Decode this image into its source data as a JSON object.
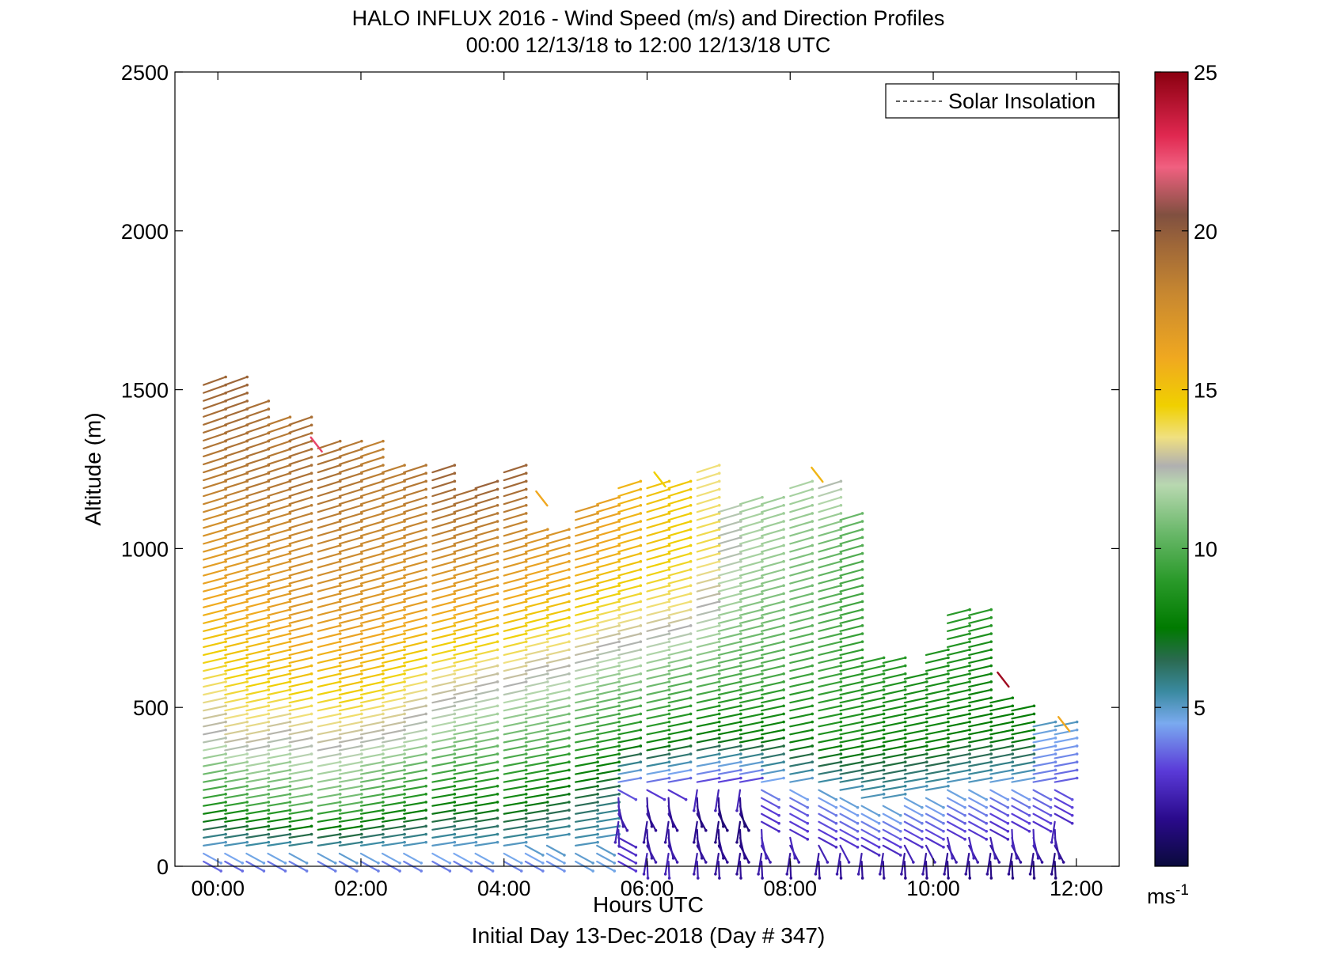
{
  "chart_data": {
    "type": "wind-barb-profile",
    "title": "HALO INFLUX 2016 - Wind Speed (m/s) and Direction Profiles",
    "subtitle": "00:00 12/13/18 to 12:00 12/13/18  UTC",
    "xlabel": "Hours UTC",
    "xlabel2": "Initial Day 13-Dec-2018 (Day # 347)",
    "ylabel": "Altitude (m)",
    "xlim": [
      -0.6,
      12.6
    ],
    "ylim": [
      0,
      2500
    ],
    "x_ticks": [
      0,
      2,
      4,
      6,
      8,
      10,
      12
    ],
    "x_tick_labels": [
      "00:00",
      "02:00",
      "04:00",
      "06:00",
      "08:00",
      "10:00",
      "12:00"
    ],
    "y_ticks": [
      0,
      500,
      1000,
      1500,
      2000,
      2500
    ],
    "y_tick_labels": [
      "0",
      "500",
      "1000",
      "1500",
      "2000",
      "2500"
    ],
    "legend": {
      "label": "Solar Insolation",
      "position": "top-right",
      "style": "dashed"
    },
    "colorbar": {
      "range": [
        0,
        25
      ],
      "ticks": [
        5,
        10,
        15,
        20,
        25
      ],
      "tick_labels": [
        "5",
        "10",
        "15",
        "20",
        "25"
      ],
      "unit": "ms",
      "unit_exp": "-1",
      "stops": [
        {
          "v": 0.0,
          "c": "#0a0a3c"
        },
        {
          "v": 1.5,
          "c": "#2a0a8c"
        },
        {
          "v": 3.0,
          "c": "#5a3ad8"
        },
        {
          "v": 4.5,
          "c": "#7aaaf0"
        },
        {
          "v": 5.5,
          "c": "#3a8aa0"
        },
        {
          "v": 6.5,
          "c": "#2a6a50"
        },
        {
          "v": 7.5,
          "c": "#007a00"
        },
        {
          "v": 9.0,
          "c": "#2a9a2a"
        },
        {
          "v": 10.5,
          "c": "#6ab86a"
        },
        {
          "v": 12.0,
          "c": "#b8d8b0"
        },
        {
          "v": 12.6,
          "c": "#b0b0b0"
        },
        {
          "v": 13.5,
          "c": "#f0e080"
        },
        {
          "v": 14.5,
          "c": "#f0d000"
        },
        {
          "v": 16.0,
          "c": "#f0a820"
        },
        {
          "v": 18.0,
          "c": "#c88830"
        },
        {
          "v": 19.5,
          "c": "#a06838"
        },
        {
          "v": 20.5,
          "c": "#805040"
        },
        {
          "v": 22.0,
          "c": "#f06080"
        },
        {
          "v": 23.0,
          "c": "#e02850"
        },
        {
          "v": 25.0,
          "c": "#8a0010"
        }
      ]
    },
    "profiles": [
      {
        "t": -0.2,
        "top": 1530,
        "spd": [
          3.2,
          9.0,
          12.5,
          14.0,
          15.8,
          17.0,
          18.5,
          19.5
        ]
      },
      {
        "t": 0.1,
        "top": 1520,
        "spd": [
          3.2,
          9.5,
          13.0,
          14.5,
          16.0,
          17.2,
          18.6,
          19.6
        ]
      },
      {
        "t": 0.4,
        "top": 1450,
        "spd": [
          3.3,
          10.0,
          13.0,
          14.8,
          16.0,
          17.5,
          18.8,
          19.2
        ]
      },
      {
        "t": 0.7,
        "top": 1410,
        "spd": [
          3.3,
          10.0,
          12.5,
          15.0,
          16.5,
          17.5,
          18.8,
          18.5
        ]
      },
      {
        "t": 1.0,
        "top": 1400,
        "spd": [
          3.4,
          10.5,
          12.8,
          15.2,
          17.0,
          17.8,
          19.0,
          19.2
        ]
      },
      {
        "t": 1.4,
        "top": 1320,
        "spd": [
          3.4,
          10.5,
          13.0,
          15.0,
          17.0,
          18.0,
          19.0,
          19.0
        ]
      },
      {
        "t": 1.7,
        "top": 1320,
        "spd": [
          3.5,
          10.5,
          12.8,
          15.5,
          17.0,
          18.0,
          18.8,
          18.5
        ]
      },
      {
        "t": 2.0,
        "top": 1330,
        "spd": [
          3.5,
          9.5,
          12.6,
          15.0,
          16.8,
          17.8,
          18.5,
          18.0
        ]
      },
      {
        "t": 2.3,
        "top": 1250,
        "spd": [
          3.5,
          9.0,
          12.5,
          14.5,
          16.5,
          17.5,
          18.5,
          18.0
        ]
      },
      {
        "t": 2.6,
        "top": 1250,
        "spd": [
          3.6,
          8.5,
          12.0,
          14.0,
          16.5,
          17.8,
          18.8,
          18.5
        ]
      },
      {
        "t": 3.0,
        "top": 1250,
        "spd": [
          3.6,
          8.0,
          11.5,
          13.5,
          16.0,
          18.0,
          19.5,
          20.0
        ]
      },
      {
        "t": 3.3,
        "top": 1180,
        "spd": [
          3.6,
          8.0,
          11.0,
          13.5,
          16.0,
          18.0,
          19.5,
          20.0
        ]
      },
      {
        "t": 3.6,
        "top": 1200,
        "spd": [
          3.7,
          8.0,
          11.0,
          13.0,
          16.0,
          17.8,
          19.8,
          20.2
        ]
      },
      {
        "t": 4.0,
        "top": 1250,
        "spd": [
          3.7,
          8.0,
          10.5,
          13.0,
          15.5,
          17.5,
          19.5,
          20.0
        ]
      },
      {
        "t": 4.3,
        "top": 1040,
        "spd": [
          3.7,
          7.5,
          10.5,
          12.5,
          15.0,
          17.0,
          18.5,
          19.0
        ]
      },
      {
        "t": 4.6,
        "top": 1050,
        "spd": [
          4.0,
          7.0,
          10.0,
          12.5,
          15.0,
          17.0,
          18.0,
          18.5
        ]
      },
      {
        "t": 5.0,
        "top": 1130,
        "spd": [
          4.5,
          6.5,
          9.5,
          12.0,
          14.5,
          16.5,
          17.5,
          17.0
        ]
      },
      {
        "t": 5.3,
        "top": 1150,
        "spd": [
          4.5,
          6.0,
          9.0,
          11.5,
          14.0,
          16.0,
          16.5,
          16.0
        ]
      },
      {
        "t": 5.6,
        "top": 1200,
        "spd": [
          3.0,
          2.0,
          8.5,
          11.5,
          13.8,
          15.5,
          15.5,
          15.0
        ]
      },
      {
        "t": 6.0,
        "top": 1200,
        "spd": [
          2.5,
          1.5,
          8.5,
          11.0,
          13.5,
          15.0,
          15.0,
          14.5
        ]
      },
      {
        "t": 6.3,
        "top": 1210,
        "spd": [
          2.5,
          1.5,
          8.0,
          10.5,
          13.5,
          14.5,
          14.8,
          14.5
        ]
      },
      {
        "t": 6.7,
        "top": 1250,
        "spd": [
          2.3,
          1.2,
          7.5,
          10.5,
          12.5,
          14.0,
          13.5,
          14.0
        ]
      },
      {
        "t": 7.0,
        "top": 1130,
        "spd": [
          2.0,
          1.0,
          7.5,
          10.0,
          11.5,
          12.5,
          12.0,
          12.0
        ]
      },
      {
        "t": 7.3,
        "top": 1160,
        "spd": [
          1.8,
          1.0,
          7.8,
          10.0,
          11.0,
          11.8,
          11.5,
          11.5
        ]
      },
      {
        "t": 7.6,
        "top": 1160,
        "spd": [
          1.8,
          3.0,
          7.5,
          9.8,
          10.8,
          11.5,
          11.5,
          11.0
        ]
      },
      {
        "t": 8.0,
        "top": 1200,
        "spd": [
          1.6,
          3.5,
          8.0,
          9.5,
          10.5,
          11.0,
          11.8,
          12.0
        ]
      },
      {
        "t": 8.4,
        "top": 1200,
        "spd": [
          1.5,
          4.0,
          8.5,
          9.5,
          10.0,
          10.5,
          12.5,
          13.0
        ]
      },
      {
        "t": 8.7,
        "top": 1090,
        "spd": [
          1.5,
          4.5,
          8.5,
          9.0,
          9.5,
          10.0,
          11.0,
          11.0
        ]
      },
      {
        "t": 9.0,
        "top": 660,
        "spd": [
          1.4,
          5.0,
          8.0,
          9.0,
          9.5,
          10.0,
          10.0,
          10.0
        ]
      },
      {
        "t": 9.3,
        "top": 660,
        "spd": [
          1.4,
          5.0,
          8.0,
          8.8,
          9.5,
          10.0,
          10.0,
          10.0
        ]
      },
      {
        "t": 9.6,
        "top": 590,
        "spd": [
          1.3,
          4.5,
          8.0,
          8.5,
          9.0,
          9.5,
          9.5,
          9.5
        ]
      },
      {
        "t": 9.9,
        "top": 670,
        "spd": [
          1.3,
          4.5,
          8.0,
          8.5,
          9.0,
          9.5,
          9.5,
          9.5
        ]
      },
      {
        "t": 10.2,
        "top": 790,
        "spd": [
          1.2,
          4.0,
          7.5,
          8.5,
          9.0,
          9.5,
          10.0,
          10.0
        ]
      },
      {
        "t": 10.5,
        "top": 790,
        "spd": [
          1.2,
          4.0,
          7.5,
          8.0,
          9.0,
          9.5,
          10.0,
          10.0
        ]
      },
      {
        "t": 10.8,
        "top": 520,
        "spd": [
          1.2,
          3.5,
          7.5,
          8.0,
          8.5,
          9.0,
          9.0,
          9.0
        ]
      },
      {
        "t": 11.1,
        "top": 500,
        "spd": [
          1.1,
          3.5,
          7.5,
          8.0,
          8.5,
          8.5,
          8.5,
          8.5
        ]
      },
      {
        "t": 11.4,
        "top": 460,
        "spd": [
          1.1,
          3.5,
          4.5,
          7.5,
          8.0,
          8.5,
          8.5,
          8.5
        ]
      },
      {
        "t": 11.7,
        "top": 460,
        "spd": [
          1.0,
          3.0,
          4.5,
          7.5,
          8.0,
          8.0,
          8.0,
          8.0
        ]
      }
    ],
    "outliers": [
      {
        "t": 1.3,
        "alt": 1350,
        "spd": 22.5
      },
      {
        "t": 4.45,
        "alt": 1180,
        "spd": 16.0
      },
      {
        "t": 6.1,
        "alt": 1240,
        "spd": 14.5
      },
      {
        "t": 8.3,
        "alt": 1255,
        "spd": 15.5
      },
      {
        "t": 10.9,
        "alt": 610,
        "spd": 24.5
      },
      {
        "t": 11.75,
        "alt": 470,
        "spd": 16.0
      }
    ]
  }
}
